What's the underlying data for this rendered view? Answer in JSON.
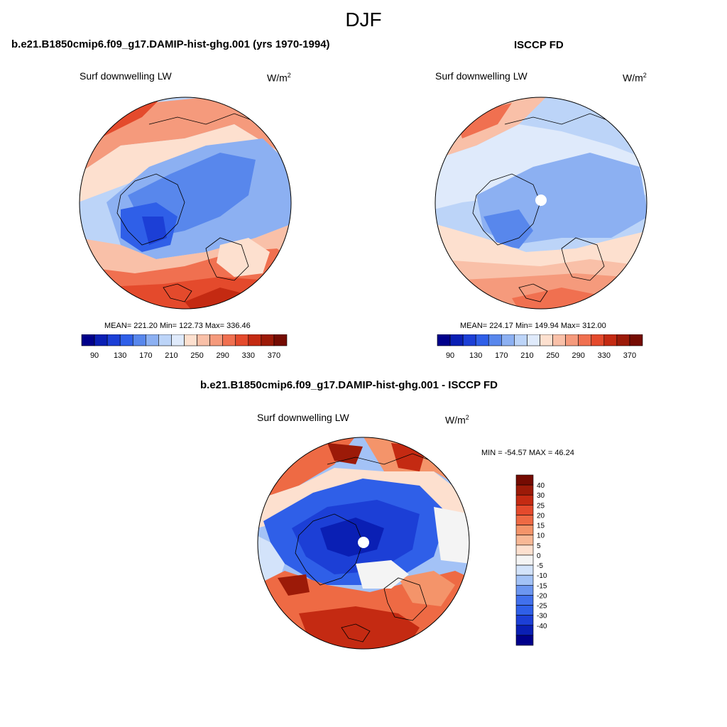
{
  "page": {
    "title": "DJF"
  },
  "colors": {
    "abs_palette": [
      "#00008b",
      "#0a1fb4",
      "#1c3fd6",
      "#2f5fe8",
      "#5887ec",
      "#8cb0f2",
      "#bcd4f8",
      "#dfeafb",
      "#fde0cf",
      "#f9c0a8",
      "#f59a7c",
      "#f07050",
      "#e44a2c",
      "#c42a12",
      "#9c1a08",
      "#750b02"
    ],
    "diff_palette": [
      "#00008b",
      "#0a1fb4",
      "#1c3fd6",
      "#2f5fe8",
      "#4170ec",
      "#6c96f0",
      "#a3c2f6",
      "#d3e3fa",
      "#f4f4f4",
      "#fde0cf",
      "#f8b896",
      "#f4946a",
      "#ee6a44",
      "#e44a2c",
      "#c42a12",
      "#9c1a08",
      "#750b02"
    ]
  },
  "panels": [
    {
      "title": "b.e21.B1850cmip6.f09_g17.DAMIP-hist-ghg.001 (yrs 1970-1994)",
      "variable": "Surf downwelling LW",
      "units": "W/m",
      "units_sup": "2",
      "stats": "MEAN= 221.20  Min= 122.73  Max= 336.46",
      "colorbar_labels": [
        "90",
        "130",
        "170",
        "210",
        "250",
        "290",
        "330",
        "370"
      ]
    },
    {
      "title": "ISCCP FD",
      "variable": "Surf downwelling LW",
      "units": "W/m",
      "units_sup": "2",
      "stats": "MEAN= 224.17  Min= 149.94  Max= 312.00",
      "colorbar_labels": [
        "90",
        "130",
        "170",
        "210",
        "250",
        "290",
        "330",
        "370"
      ]
    },
    {
      "title": "b.e21.B1850cmip6.f09_g17.DAMIP-hist-ghg.001 - ISCCP FD",
      "variable": "Surf downwelling LW",
      "units": "W/m",
      "units_sup": "2",
      "stats": "MIN = -54.57 MAX =  46.24",
      "colorbar_labels": [
        "40",
        "30",
        "25",
        "20",
        "15",
        "10",
        "5",
        "0",
        "-5",
        "-10",
        "-15",
        "-20",
        "-25",
        "-30",
        "-40"
      ]
    }
  ]
}
